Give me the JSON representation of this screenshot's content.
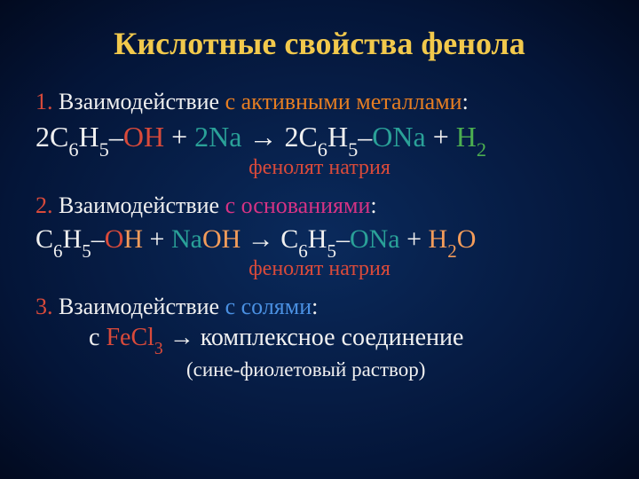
{
  "colors": {
    "background_center": "#0a2a5c",
    "background_edge": "#020a1f",
    "text_default": "#e8e8e8",
    "yellow": "#f2c94c",
    "red": "#d94a3a",
    "orange": "#e67e22",
    "teal": "#2aa198",
    "green": "#4caf50",
    "magenta": "#d63384",
    "light_orange": "#f39c5a",
    "blue": "#4a90e2"
  },
  "typography": {
    "title_fontsize": 36,
    "heading_fontsize": 26,
    "formula_fontsize": 32,
    "caption_fontsize": 24,
    "font_family": "Times New Roman"
  },
  "title": "Кислотные свойства фенола",
  "section1": {
    "num": "1. ",
    "prefix": "Взаимодействие ",
    "suffix": "с активными металлами",
    "colon": ":",
    "formula": {
      "p1": "2C",
      "s1": "6",
      "p2": "H",
      "s2": "5",
      "dash1": "–",
      "oh": "ОН",
      "plus": " + ",
      "na": "2Na",
      "arrow": " → ",
      "p3": "2C",
      "s3": "6",
      "p4": "H",
      "s4": "5",
      "dash2": "–",
      "ona": "ОNa",
      "plus2": " + ",
      "h": "H",
      "s5": "2"
    },
    "caption": "фенолят натрия"
  },
  "section2": {
    "num": "2. ",
    "prefix": "Взаимодействие ",
    "suffix": "с основаниями",
    "colon": ":",
    "formula": {
      "p1": "C",
      "s1": "6",
      "p2": "H",
      "s2": "5",
      "dash1": "–",
      "o": "О",
      "h1": "Н",
      "plus": " + ",
      "na": "Na",
      "oh": "OH",
      "arrow": " → ",
      "p3": "C",
      "s3": "6",
      "p4": "H",
      "s4": "5",
      "dash2": "–",
      "ona": "ОNa",
      "plus2": " + ",
      "h2": "H",
      "s5": "2",
      "o2": "O"
    },
    "caption": "фенолят натрия"
  },
  "section3": {
    "num": "3. ",
    "prefix": "Взаимодействие ",
    "suffix": "с солями",
    "colon": ":",
    "line2_s": "с ",
    "fecl": "FeCl",
    "fecl_sub": "3",
    "arrow": " → ",
    "complex": "комплексное соединение",
    "note": "(сине-фиолетовый раствор)"
  }
}
